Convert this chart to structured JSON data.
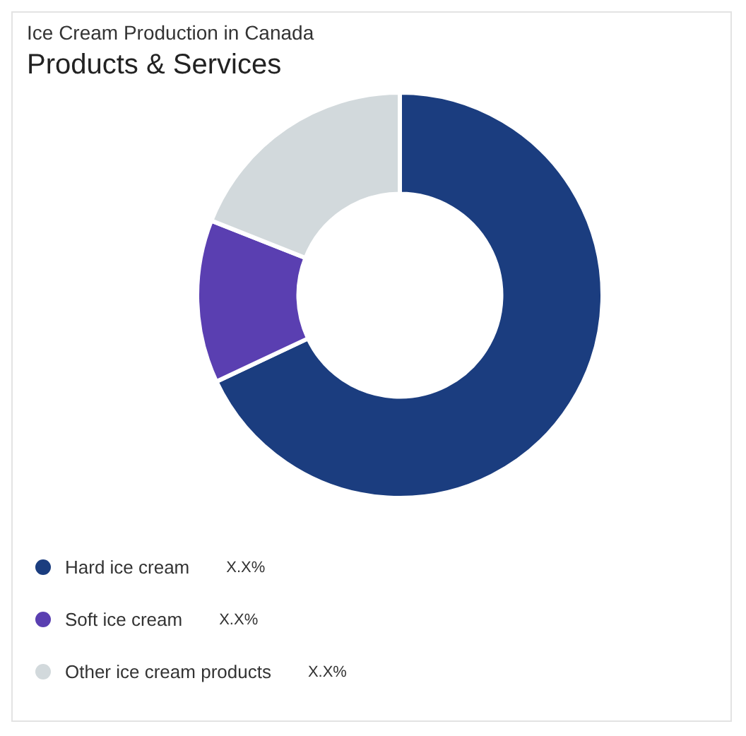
{
  "chart_data": {
    "type": "donut",
    "title": "Ice Cream Production in Canada",
    "subtitle": "Products & Services",
    "categories": [
      "Hard ice cream",
      "Soft ice cream",
      "Other ice cream products"
    ],
    "values": [
      68,
      13,
      19
    ],
    "colors": [
      "#1b3d7f",
      "#5a3fb1",
      "#d2d9dc"
    ],
    "value_labels": [
      "X.X%",
      "X.X%",
      "X.X%"
    ],
    "legend": "bottom"
  }
}
